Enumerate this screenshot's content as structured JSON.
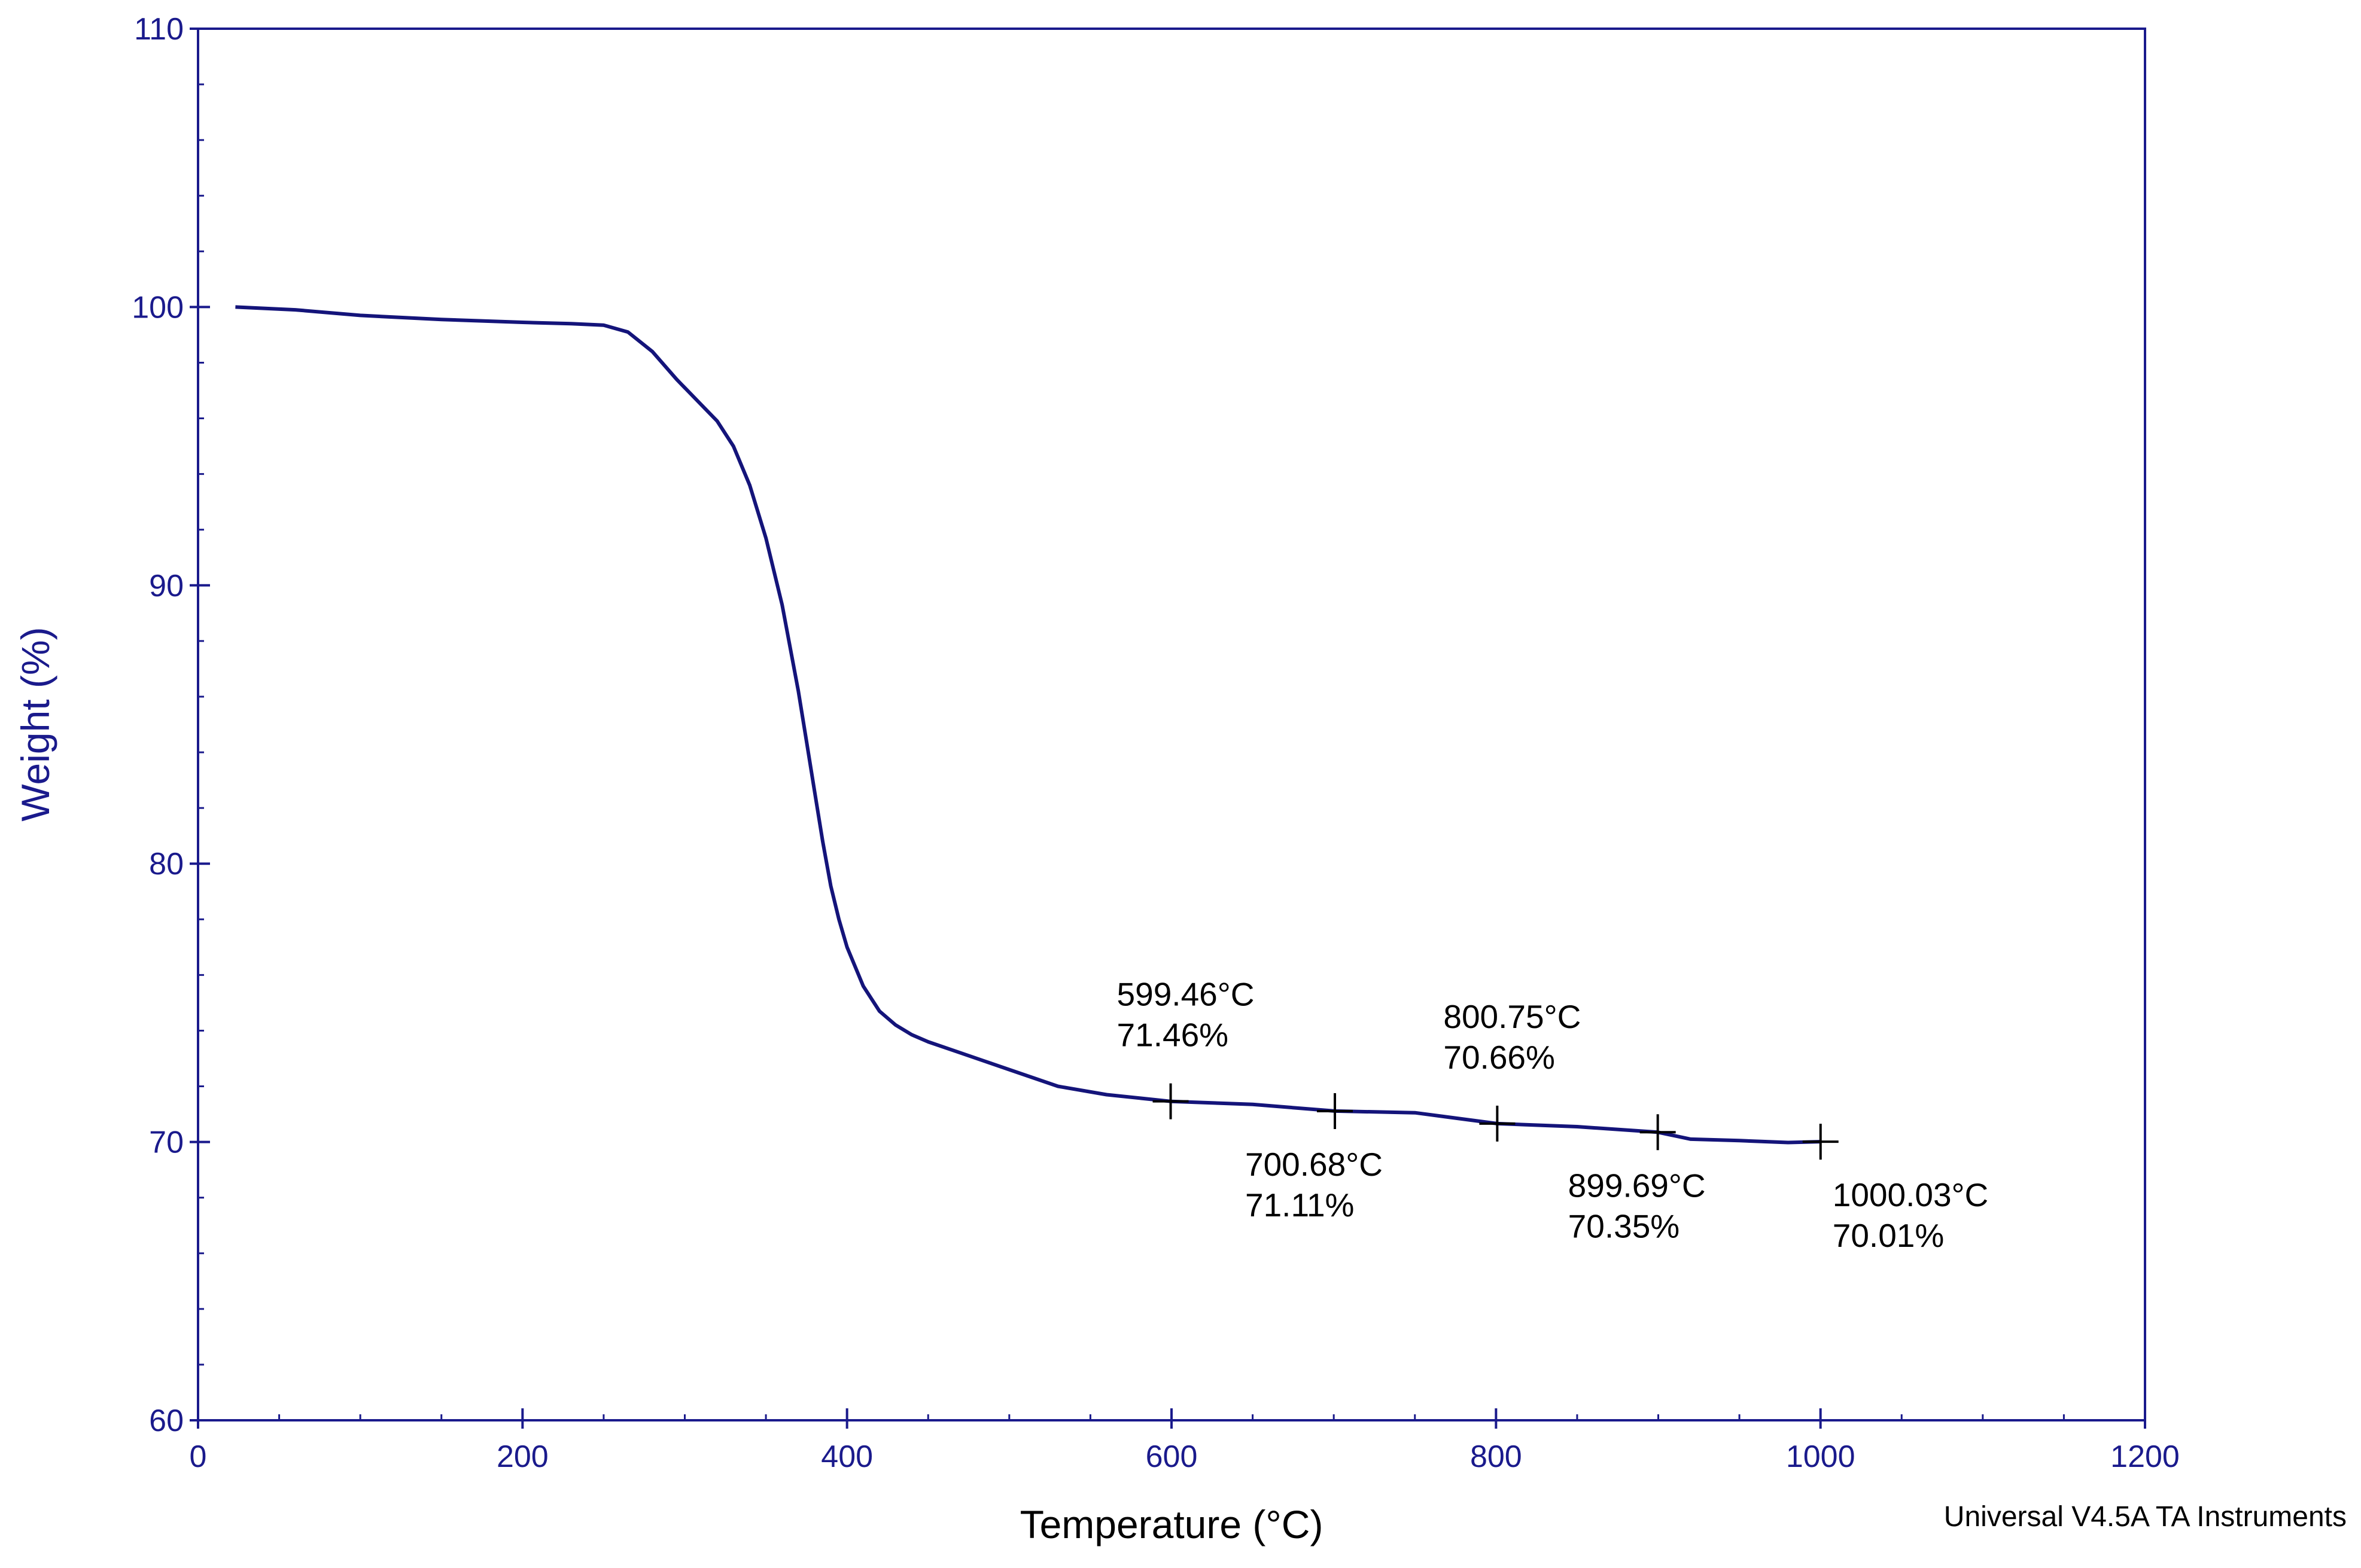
{
  "chart_data": {
    "type": "line",
    "title": "",
    "xlabel": "Temperature (°C)",
    "ylabel": "Weight (%)",
    "xlim": [
      0,
      1200
    ],
    "ylim": [
      60,
      110
    ],
    "x_ticks": [
      0,
      200,
      400,
      600,
      800,
      1000,
      1200
    ],
    "y_ticks": [
      60,
      70,
      80,
      90,
      100,
      110
    ],
    "x_tick_labels": [
      "0",
      "200",
      "400",
      "600",
      "800",
      "1000",
      "1200"
    ],
    "y_tick_labels": [
      "60",
      "70",
      "80",
      "90",
      "100",
      "110"
    ],
    "x_minor_step": 50,
    "y_minor_step": 2,
    "grid": false,
    "colors": {
      "axis": "#1a1a8c",
      "line": "#14147a",
      "annotation": "#000000"
    },
    "series": [
      {
        "name": "Weight",
        "x": [
          23,
          60,
          100,
          150,
          200,
          230,
          250,
          265,
          280,
          295,
          310,
          320,
          330,
          340,
          350,
          360,
          370,
          375,
          380,
          385,
          390,
          395,
          400,
          410,
          420,
          430,
          440,
          450,
          470,
          500,
          530,
          560,
          599.46,
          650,
          700.68,
          750,
          800.75,
          850,
          899.69,
          920,
          950,
          980,
          1000.03
        ],
        "y": [
          100.0,
          99.9,
          99.7,
          99.55,
          99.45,
          99.4,
          99.35,
          99.1,
          98.4,
          97.4,
          96.5,
          95.9,
          95.0,
          93.6,
          91.7,
          89.3,
          86.2,
          84.4,
          82.6,
          80.8,
          79.2,
          78.0,
          77.0,
          75.6,
          74.7,
          74.2,
          73.85,
          73.6,
          73.2,
          72.6,
          72.0,
          71.7,
          71.46,
          71.35,
          71.11,
          71.05,
          70.66,
          70.55,
          70.35,
          70.1,
          70.05,
          69.98,
          70.01
        ]
      }
    ],
    "markers": [
      {
        "x": 599.46,
        "y": 71.46,
        "label_temp": "599.46°C",
        "label_weight": "71.46%",
        "placement": "above-left"
      },
      {
        "x": 700.68,
        "y": 71.11,
        "label_temp": "700.68°C",
        "label_weight": "71.11%",
        "placement": "below-left"
      },
      {
        "x": 800.75,
        "y": 70.66,
        "label_temp": "800.75°C",
        "label_weight": "70.66%",
        "placement": "above-left"
      },
      {
        "x": 899.69,
        "y": 70.35,
        "label_temp": "899.69°C",
        "label_weight": "70.35%",
        "placement": "below-left"
      },
      {
        "x": 1000.03,
        "y": 70.01,
        "label_temp": "1000.03°C",
        "label_weight": "70.01%",
        "placement": "below-right"
      }
    ]
  },
  "footer": {
    "credit": "Universal V4.5A TA Instruments"
  }
}
